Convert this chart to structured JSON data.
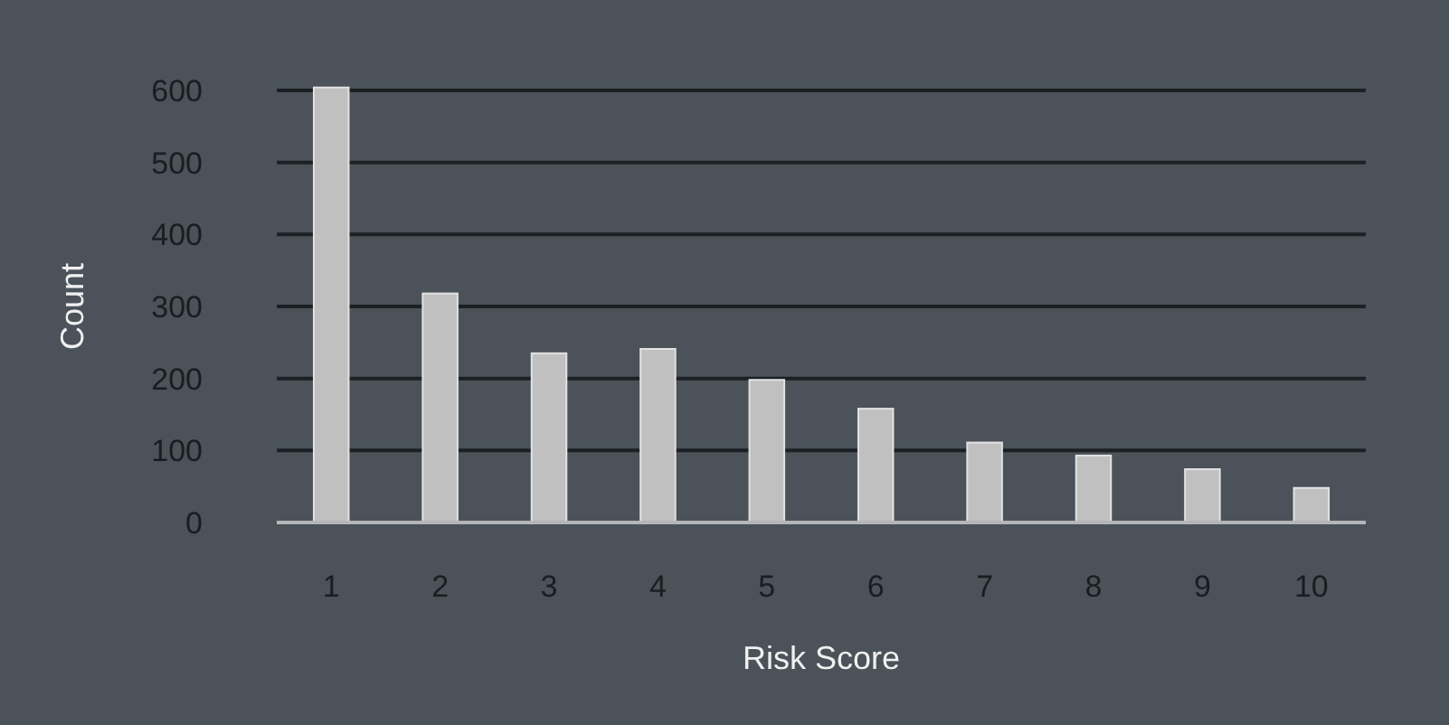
{
  "chart_data": {
    "type": "bar",
    "xlabel": "Risk Score",
    "ylabel": "Count",
    "categories": [
      "1",
      "2",
      "3",
      "4",
      "5",
      "6",
      "7",
      "8",
      "9",
      "10"
    ],
    "values": [
      604,
      318,
      235,
      241,
      198,
      158,
      111,
      93,
      74,
      48
    ],
    "color": "#c0c0c0",
    "ylim": [
      0,
      610
    ],
    "yticks": [
      0,
      100,
      200,
      300,
      400,
      500,
      600
    ],
    "grid": "y"
  }
}
